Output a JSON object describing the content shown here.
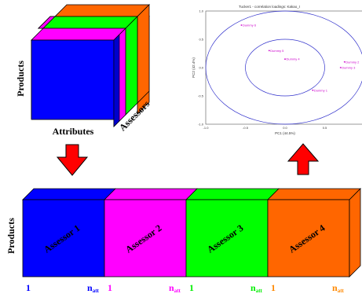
{
  "cube": {
    "label_products": "Products",
    "label_attributes": "Attributes",
    "label_assessors": "Assessors",
    "colors": [
      "#0000ff",
      "#ff00ff",
      "#00ff00",
      "#ff6600"
    ]
  },
  "plot": {
    "title": "Tucker1 - correlation loadings: Kakao_I",
    "xlabel": "PC1 (44.5%)",
    "ylabel": "PC2 (42.4%)",
    "x_ticks": [
      "-1.0",
      "-0.5",
      "0.0",
      "0.5",
      "1.0"
    ],
    "y_ticks": [
      "1.0",
      "0.5",
      "0.0",
      "-0.5",
      "-1.0"
    ],
    "point_color": "#cc00cc",
    "circle_color": "#3333cc"
  },
  "chart_data": {
    "type": "scatter",
    "title": "Tucker1 - correlation loadings: Kakao_I",
    "xlabel": "PC1 (44.5%)",
    "ylabel": "PC2 (42.4%)",
    "xlim": [
      -1.0,
      1.0
    ],
    "ylim": [
      -1.0,
      1.0
    ],
    "circles": [
      0.5,
      1.0
    ],
    "points": [
      {
        "label": "Dummy 6",
        "x": -0.55,
        "y": 0.75
      },
      {
        "label": "Dummy 5",
        "x": -0.2,
        "y": 0.3
      },
      {
        "label": "Dummy 4",
        "x": 0.0,
        "y": 0.15
      },
      {
        "label": "Dummy 1",
        "x": 0.35,
        "y": -0.4
      },
      {
        "label": "Dummy 2",
        "x": 0.75,
        "y": 0.1
      },
      {
        "label": "Dummy 3",
        "x": 0.7,
        "y": 0.0
      }
    ]
  },
  "blocks": {
    "label_products": "Products",
    "items": [
      {
        "label": "Assessor 1",
        "color": "#0000ff",
        "start": "1",
        "end": "n",
        "end_sub": "att",
        "index_color": "#0000ff"
      },
      {
        "label": "Assessor 2",
        "color": "#ff00ff",
        "start": "1",
        "end": "n",
        "end_sub": "att",
        "index_color": "#ff00ff"
      },
      {
        "label": "Assessor 3",
        "color": "#00ff00",
        "start": "1",
        "end": "n",
        "end_sub": "att",
        "index_color": "#00ee00"
      },
      {
        "label": "Assessor 4",
        "color": "#ff6600",
        "start": "1",
        "end": "n",
        "end_sub": "att",
        "index_color": "#ff8800"
      }
    ]
  },
  "arrows": {
    "down_color": "#ff0000",
    "up_color": "#ff0000"
  }
}
